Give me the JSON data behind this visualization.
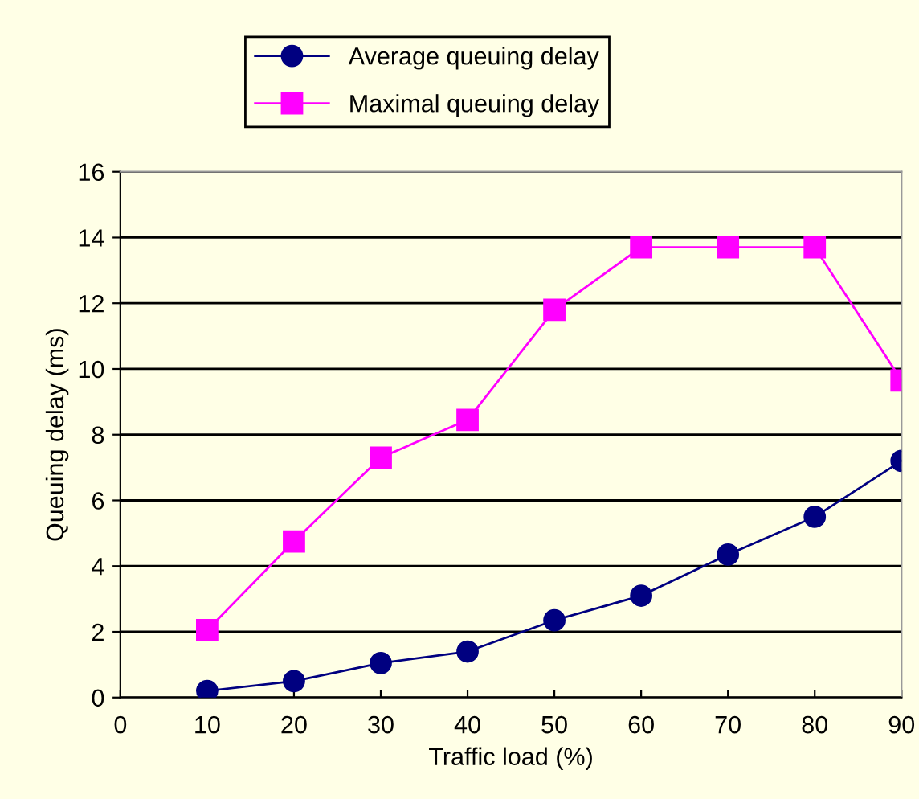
{
  "chart_data": {
    "type": "line",
    "xlabel": "Traffic load (%)",
    "ylabel": "Queuing delay (ms)",
    "x": [
      10,
      20,
      30,
      40,
      50,
      60,
      70,
      80,
      90
    ],
    "series": [
      {
        "name": "Average queuing delay",
        "color": "#000080",
        "marker": "circle",
        "values": [
          0.2,
          0.5,
          1.05,
          1.4,
          2.35,
          3.1,
          4.35,
          5.5,
          7.2
        ]
      },
      {
        "name": "Maximal queuing delay",
        "color": "#ff00ff",
        "marker": "square",
        "values": [
          2.05,
          4.75,
          7.3,
          8.45,
          11.8,
          13.7,
          13.7,
          13.7,
          9.65
        ]
      }
    ],
    "xlim": [
      0,
      90
    ],
    "xticks": [
      0,
      10,
      20,
      30,
      40,
      50,
      60,
      70,
      80,
      90
    ],
    "ylim": [
      0,
      16
    ],
    "yticks": [
      0,
      2,
      4,
      6,
      8,
      10,
      12,
      14,
      16
    ],
    "grid": "y",
    "legend": "top",
    "line_style": "solid"
  }
}
